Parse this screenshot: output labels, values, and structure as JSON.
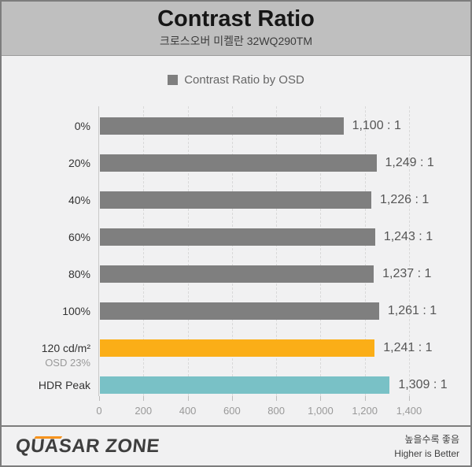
{
  "chart_data": {
    "type": "bar",
    "orientation": "horizontal",
    "title": "Contrast Ratio",
    "subtitle": "크로스오버 미켈란 32WQ290TM",
    "legend": "Contrast Ratio by OSD",
    "xlim": [
      0,
      1400
    ],
    "xticks": [
      0,
      200,
      400,
      600,
      800,
      1000,
      1200,
      1400
    ],
    "xtick_labels": [
      "0",
      "200",
      "400",
      "600",
      "800",
      "1,000",
      "1,200",
      "1,400"
    ],
    "grid": "dashed-vertical",
    "legend_position": "top-center",
    "rows": [
      {
        "label": "0%",
        "value": 1100,
        "display": "1,100 : 1",
        "color": "gray"
      },
      {
        "label": "20%",
        "value": 1249,
        "display": "1,249 : 1",
        "color": "gray"
      },
      {
        "label": "40%",
        "value": 1226,
        "display": "1,226 : 1",
        "color": "gray"
      },
      {
        "label": "60%",
        "value": 1243,
        "display": "1,243 : 1",
        "color": "gray"
      },
      {
        "label": "80%",
        "value": 1237,
        "display": "1,237 : 1",
        "color": "gray"
      },
      {
        "label": "100%",
        "value": 1261,
        "display": "1,261 : 1",
        "color": "gray"
      },
      {
        "label": "120 cd/m²",
        "sublabel": "OSD 23%",
        "value": 1241,
        "display": "1,241 : 1",
        "color": "orange"
      },
      {
        "label": "HDR Peak",
        "value": 1309,
        "display": "1,309 : 1",
        "color": "teal"
      }
    ],
    "colors": {
      "gray": "#7f7f7f",
      "orange": "#fbae17",
      "teal": "#79c1c6"
    }
  },
  "footer": {
    "brand": "QUASAR ZONE",
    "note_ko": "높을수록 좋음",
    "note_en": "Higher is Better"
  }
}
